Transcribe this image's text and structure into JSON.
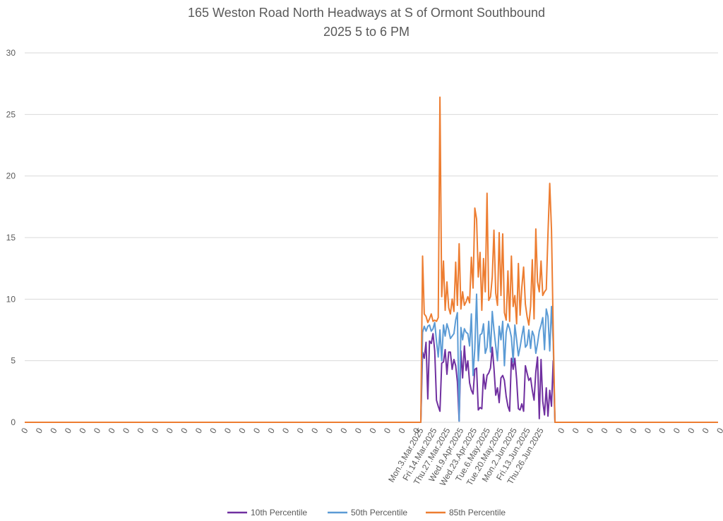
{
  "chart_data": {
    "type": "line",
    "title": "165 Weston Road North Headways at S of Ormont Southbound",
    "subtitle": "2025 5 to 6 PM",
    "ylim": [
      0,
      30
    ],
    "yticks": [
      0,
      5,
      10,
      15,
      20,
      25,
      30
    ],
    "grid": true,
    "legend_position": "bottom",
    "colors": {
      "p10": "#7030a0",
      "p50": "#5b9bd5",
      "p85": "#ed7d31"
    },
    "x_tick_labels": [
      "0",
      "0",
      "0",
      "0",
      "0",
      "0",
      "0",
      "0",
      "0",
      "0",
      "0",
      "0",
      "0",
      "0",
      "0",
      "0",
      "0",
      "0",
      "0",
      "0",
      "0",
      "0",
      "0",
      "0",
      "0",
      "0",
      "0",
      "0",
      "Mon.3.Mar.2025",
      "Fri.14.Mar.2025",
      "Thu.27.Mar.2025",
      "Wed.9.Apr.2025",
      "Wed.23.Apr.2025",
      "Tue.6.May.2025",
      "Tue.20.May.2025",
      "Mon.2.Jun.2025",
      "Fri.13.Jun.2025",
      "Thu.26.Jun.2025",
      "0",
      "0",
      "0",
      "0",
      "0",
      "0",
      "0",
      "0",
      "0",
      "0",
      "0",
      "0"
    ],
    "series": [
      {
        "name": "10th Percentile",
        "key": "p10",
        "values": [
          0,
          5.7,
          5.2,
          6.5,
          1.9,
          6.6,
          6.4,
          7.2,
          5.8,
          1.8,
          1.3,
          0.9,
          4.8,
          4.9,
          5.9,
          3.9,
          5.7,
          5.7,
          4.3,
          5.1,
          4.6,
          3.3,
          0.1,
          5.8,
          3.6,
          6.2,
          4.2,
          5.0,
          3.2,
          2.6,
          2.3,
          4.3,
          4.4,
          1.0,
          1.2,
          1.1,
          3.9,
          2.7,
          3.8,
          4.0,
          4.4,
          6.1,
          4.4,
          2.2,
          2.8,
          1.6,
          3.6,
          3.8,
          3.4,
          2.1,
          1.3,
          0.9,
          5.2,
          4.3,
          5.2,
          3.5,
          1.1,
          1.0,
          1.5,
          0.9,
          4.6,
          4.0,
          3.4,
          3.6,
          2.6,
          1.8,
          4.1,
          5.3,
          0.3,
          5.1,
          1.7,
          0.6,
          2.8,
          0.5,
          2.6,
          1.3,
          5.0,
          0
        ]
      },
      {
        "name": "50th Percentile",
        "key": "p50",
        "values": [
          0,
          7.3,
          7.8,
          7.4,
          7.8,
          7.9,
          7.4,
          7.6,
          8.1,
          6.6,
          5.3,
          7.5,
          5.0,
          7.9,
          7.0,
          8.0,
          7.5,
          6.8,
          7.0,
          7.2,
          8.3,
          8.9,
          0.1,
          7.7,
          6.7,
          7.6,
          7.3,
          7.2,
          6.2,
          8.8,
          3.8,
          6.0,
          10.4,
          5.0,
          7.1,
          7.2,
          8.0,
          5.6,
          6.1,
          8.2,
          5.7,
          9.0,
          7.5,
          6.2,
          5.0,
          7.8,
          6.7,
          8.2,
          4.6,
          7.3,
          8.0,
          7.6,
          6.9,
          4.9,
          7.9,
          6.7,
          5.4,
          6.1,
          7.0,
          7.8,
          6.1,
          6.3,
          7.5,
          6.0,
          7.4,
          7.0,
          5.6,
          6.4,
          7.4,
          7.9,
          8.5,
          5.9,
          9.2,
          8.6,
          5.8,
          9.4,
          6.5,
          0
        ]
      },
      {
        "name": "85th Percentile",
        "key": "p85",
        "values": [
          0,
          13.5,
          8.8,
          8.6,
          8.1,
          8.4,
          8.8,
          8.2,
          8.3,
          8.2,
          8.5,
          26.4,
          10.2,
          13.1,
          9.1,
          11.4,
          9.3,
          8.8,
          10.0,
          9.0,
          13.0,
          9.5,
          14.5,
          9.2,
          10.6,
          9.5,
          9.8,
          10.2,
          9.7,
          13.4,
          10.9,
          17.4,
          16.5,
          11.8,
          13.8,
          9.1,
          13.3,
          10.6,
          18.6,
          9.9,
          10.2,
          11.8,
          15.6,
          10.5,
          9.5,
          15.4,
          10.3,
          15.3,
          8.9,
          8.3,
          12.3,
          8.2,
          13.5,
          9.4,
          10.3,
          8.0,
          12.9,
          8.7,
          11.0,
          12.6,
          9.6,
          8.6,
          7.9,
          9.4,
          13.2,
          8.4,
          15.7,
          11.4,
          10.6,
          13.1,
          10.3,
          10.6,
          10.8,
          15.3,
          19.4,
          15.6,
          7.6,
          0
        ]
      }
    ]
  }
}
